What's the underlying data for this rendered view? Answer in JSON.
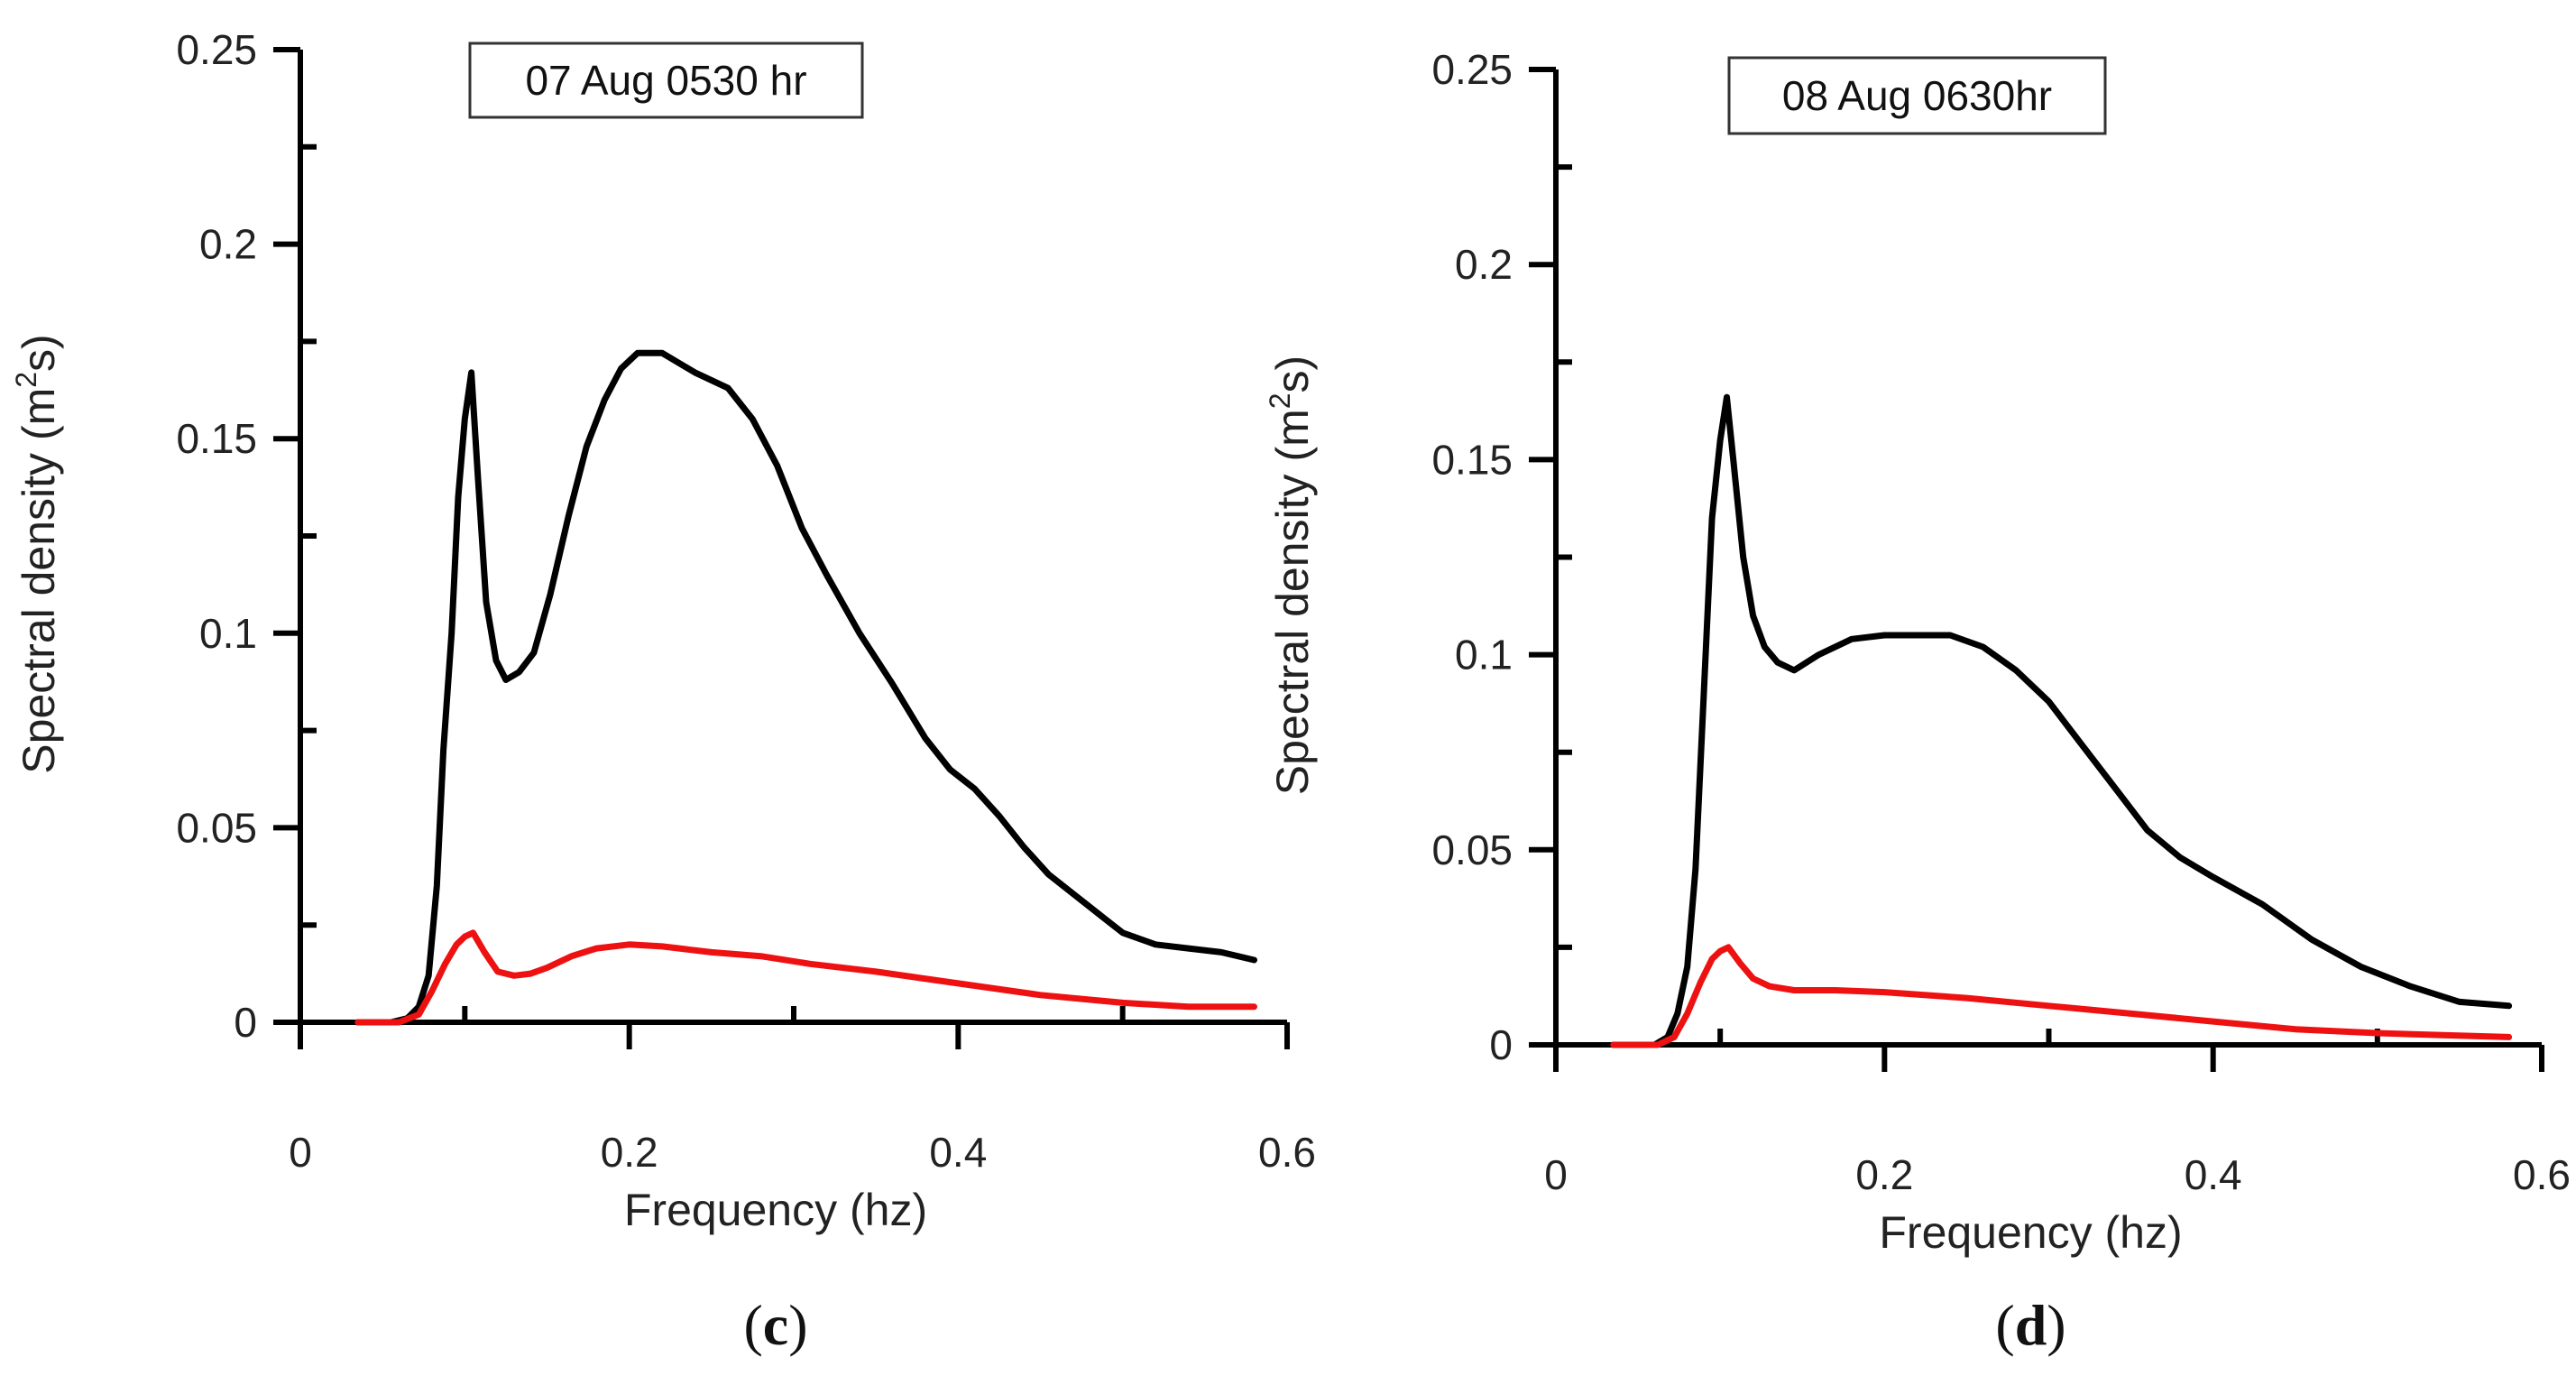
{
  "chart_data": [
    {
      "type": "line",
      "id": "c",
      "annotation": "07 Aug 0530 hr",
      "caption_open": "(",
      "caption_letter": "c",
      "caption_close": ")",
      "xlabel": "Frequency (hz)",
      "ylabel_main": "Spectral density (m",
      "ylabel_sup": "2",
      "ylabel_end": "s)",
      "xlim": [
        0,
        0.6
      ],
      "ylim": [
        0,
        0.25
      ],
      "xticks": [
        0,
        0.2,
        0.4,
        0.6
      ],
      "xtick_labels": [
        "0",
        "0.2",
        "0.4",
        "0.6"
      ],
      "yticks": [
        0,
        0.05,
        0.1,
        0.15,
        0.2,
        0.25
      ],
      "ytick_labels": [
        "0",
        "0.05",
        "0.1",
        "0.15",
        "0.2",
        "0.25"
      ],
      "series": [
        {
          "name": "black curve",
          "color": "#000000",
          "points": [
            [
              0.035,
              0
            ],
            [
              0.055,
              0
            ],
            [
              0.065,
              0.001
            ],
            [
              0.072,
              0.004
            ],
            [
              0.078,
              0.012
            ],
            [
              0.083,
              0.035
            ],
            [
              0.087,
              0.07
            ],
            [
              0.092,
              0.1
            ],
            [
              0.096,
              0.135
            ],
            [
              0.1,
              0.155
            ],
            [
              0.104,
              0.167
            ],
            [
              0.108,
              0.14
            ],
            [
              0.113,
              0.108
            ],
            [
              0.119,
              0.093
            ],
            [
              0.125,
              0.088
            ],
            [
              0.133,
              0.09
            ],
            [
              0.142,
              0.095
            ],
            [
              0.152,
              0.11
            ],
            [
              0.163,
              0.13
            ],
            [
              0.174,
              0.148
            ],
            [
              0.185,
              0.16
            ],
            [
              0.195,
              0.168
            ],
            [
              0.205,
              0.172
            ],
            [
              0.22,
              0.172
            ],
            [
              0.24,
              0.167
            ],
            [
              0.26,
              0.163
            ],
            [
              0.275,
              0.155
            ],
            [
              0.29,
              0.143
            ],
            [
              0.305,
              0.127
            ],
            [
              0.32,
              0.115
            ],
            [
              0.34,
              0.1
            ],
            [
              0.36,
              0.087
            ],
            [
              0.38,
              0.073
            ],
            [
              0.395,
              0.065
            ],
            [
              0.41,
              0.06
            ],
            [
              0.425,
              0.053
            ],
            [
              0.44,
              0.045
            ],
            [
              0.455,
              0.038
            ],
            [
              0.47,
              0.033
            ],
            [
              0.485,
              0.028
            ],
            [
              0.5,
              0.023
            ],
            [
              0.52,
              0.02
            ],
            [
              0.54,
              0.019
            ],
            [
              0.56,
              0.018
            ],
            [
              0.58,
              0.016
            ]
          ]
        },
        {
          "name": "red curve",
          "color": "#ee1111",
          "points": [
            [
              0.035,
              0
            ],
            [
              0.06,
              0
            ],
            [
              0.072,
              0.002
            ],
            [
              0.08,
              0.008
            ],
            [
              0.088,
              0.015
            ],
            [
              0.095,
              0.02
            ],
            [
              0.1,
              0.022
            ],
            [
              0.105,
              0.023
            ],
            [
              0.112,
              0.018
            ],
            [
              0.12,
              0.013
            ],
            [
              0.13,
              0.012
            ],
            [
              0.14,
              0.0125
            ],
            [
              0.15,
              0.014
            ],
            [
              0.165,
              0.017
            ],
            [
              0.18,
              0.019
            ],
            [
              0.2,
              0.02
            ],
            [
              0.22,
              0.0195
            ],
            [
              0.25,
              0.018
            ],
            [
              0.28,
              0.017
            ],
            [
              0.31,
              0.015
            ],
            [
              0.35,
              0.013
            ],
            [
              0.4,
              0.01
            ],
            [
              0.45,
              0.007
            ],
            [
              0.5,
              0.005
            ],
            [
              0.54,
              0.004
            ],
            [
              0.58,
              0.004
            ]
          ]
        }
      ]
    },
    {
      "type": "line",
      "id": "d",
      "annotation": "08 Aug 0630hr",
      "caption_open": "(",
      "caption_letter": "d",
      "caption_close": ")",
      "xlabel": "Frequency (hz)",
      "ylabel_main": "Spectral density (m",
      "ylabel_sup": "2",
      "ylabel_end": "s)",
      "xlim": [
        0,
        0.6
      ],
      "ylim": [
        0,
        0.25
      ],
      "xticks": [
        0,
        0.2,
        0.4,
        0.6
      ],
      "xtick_labels": [
        "0",
        "0.2",
        "0.4",
        "0.6"
      ],
      "yticks": [
        0,
        0.05,
        0.1,
        0.15,
        0.2,
        0.25
      ],
      "ytick_labels": [
        "0",
        "0.05",
        "0.1",
        "0.15",
        "0.2",
        "0.25"
      ],
      "series": [
        {
          "name": "black curve",
          "color": "#000000",
          "points": [
            [
              0.035,
              0
            ],
            [
              0.06,
              0
            ],
            [
              0.068,
              0.002
            ],
            [
              0.074,
              0.008
            ],
            [
              0.08,
              0.02
            ],
            [
              0.085,
              0.045
            ],
            [
              0.09,
              0.09
            ],
            [
              0.095,
              0.135
            ],
            [
              0.1,
              0.155
            ],
            [
              0.104,
              0.166
            ],
            [
              0.108,
              0.15
            ],
            [
              0.114,
              0.125
            ],
            [
              0.12,
              0.11
            ],
            [
              0.127,
              0.102
            ],
            [
              0.135,
              0.098
            ],
            [
              0.145,
              0.096
            ],
            [
              0.16,
              0.1
            ],
            [
              0.18,
              0.104
            ],
            [
              0.2,
              0.105
            ],
            [
              0.24,
              0.105
            ],
            [
              0.26,
              0.102
            ],
            [
              0.28,
              0.096
            ],
            [
              0.3,
              0.088
            ],
            [
              0.32,
              0.077
            ],
            [
              0.34,
              0.066
            ],
            [
              0.36,
              0.055
            ],
            [
              0.38,
              0.048
            ],
            [
              0.4,
              0.043
            ],
            [
              0.43,
              0.036
            ],
            [
              0.46,
              0.027
            ],
            [
              0.49,
              0.02
            ],
            [
              0.52,
              0.015
            ],
            [
              0.55,
              0.011
            ],
            [
              0.58,
              0.01
            ]
          ]
        },
        {
          "name": "red curve",
          "color": "#ee1111",
          "points": [
            [
              0.035,
              0
            ],
            [
              0.062,
              0
            ],
            [
              0.072,
              0.002
            ],
            [
              0.08,
              0.008
            ],
            [
              0.088,
              0.016
            ],
            [
              0.095,
              0.022
            ],
            [
              0.1,
              0.024
            ],
            [
              0.105,
              0.025
            ],
            [
              0.112,
              0.021
            ],
            [
              0.12,
              0.017
            ],
            [
              0.13,
              0.015
            ],
            [
              0.145,
              0.014
            ],
            [
              0.17,
              0.014
            ],
            [
              0.2,
              0.0135
            ],
            [
              0.25,
              0.012
            ],
            [
              0.3,
              0.01
            ],
            [
              0.35,
              0.008
            ],
            [
              0.4,
              0.006
            ],
            [
              0.45,
              0.004
            ],
            [
              0.5,
              0.003
            ],
            [
              0.54,
              0.0025
            ],
            [
              0.58,
              0.002
            ]
          ]
        }
      ]
    }
  ]
}
